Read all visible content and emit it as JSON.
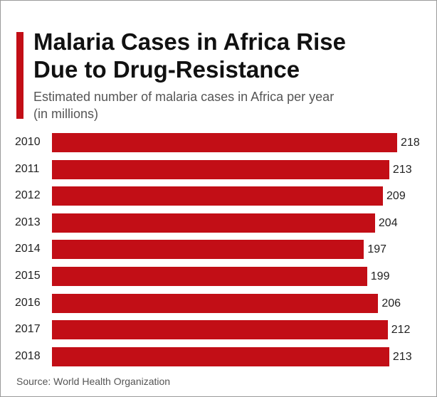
{
  "chart_data": {
    "type": "bar",
    "orientation": "horizontal",
    "title": "Malaria Cases in Africa Rise Due to Drug-Resistance",
    "subtitle": "Estimated number of malaria cases in Africa per year (in millions)",
    "source": "Source: World Health Organization",
    "categories": [
      "2010",
      "2011",
      "2012",
      "2013",
      "2014",
      "2015",
      "2016",
      "2017",
      "2018"
    ],
    "values": [
      218,
      213,
      209,
      204,
      197,
      199,
      206,
      212,
      213
    ],
    "color": "#c20e16"
  }
}
